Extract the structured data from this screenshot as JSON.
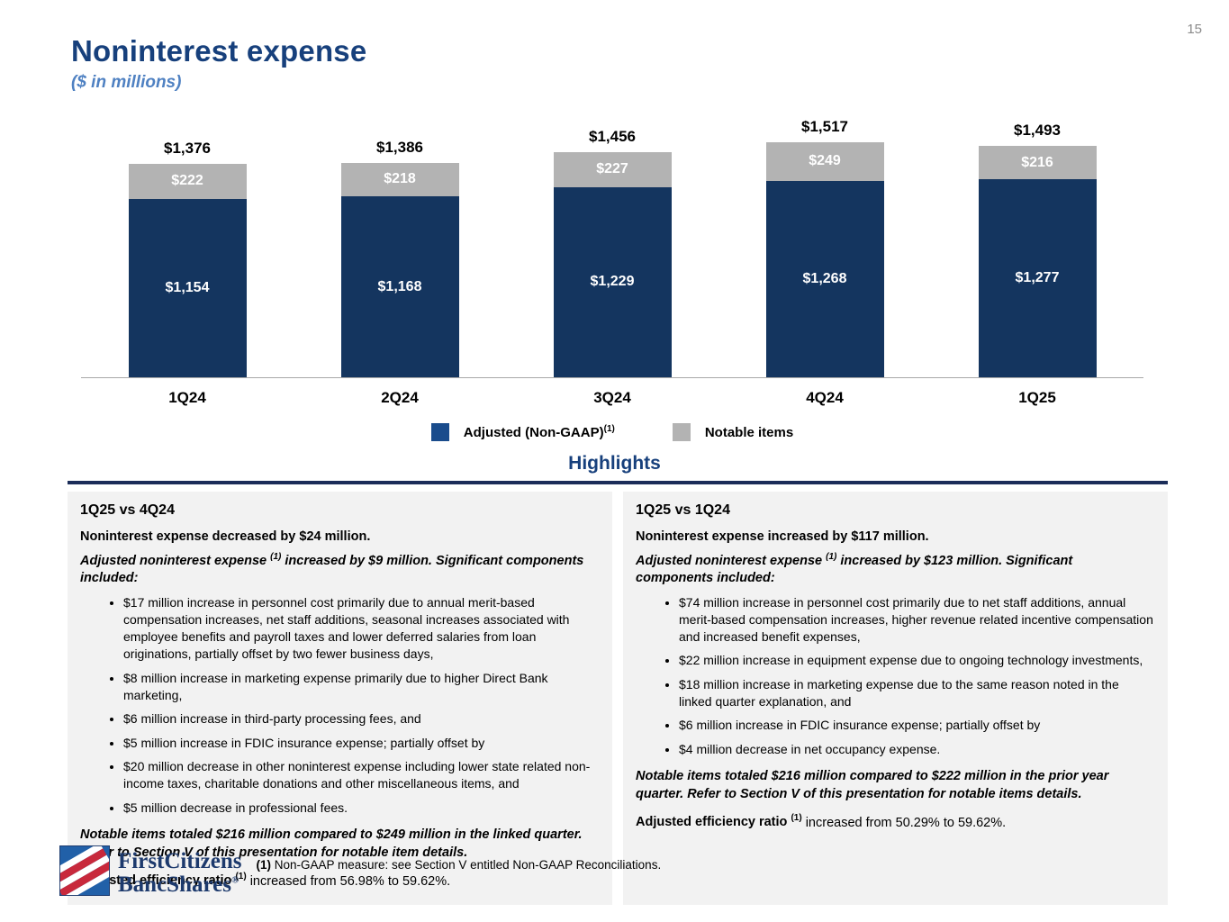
{
  "page": {
    "number": "15"
  },
  "header": {
    "title": "Noninterest expense",
    "subtitle": "($ in millions)"
  },
  "colors": {
    "accent_navy": "#17407c",
    "rule_navy": "#1b2d59",
    "bar_navy": "#14355f",
    "notable_gray": "#b3b3b3"
  },
  "chart_data": {
    "type": "bar",
    "stacked": true,
    "title": "Noninterest expense ($ in millions)",
    "categories": [
      "1Q24",
      "2Q24",
      "3Q24",
      "4Q24",
      "1Q25"
    ],
    "series": [
      {
        "name": "Adjusted (Non-GAAP)",
        "color": "#14355f",
        "values": [
          1154,
          1168,
          1229,
          1268,
          1277
        ],
        "labels": [
          "$1,154",
          "$1,168",
          "$1,229",
          "$1,268",
          "$1,277"
        ]
      },
      {
        "name": "Notable items",
        "color": "#b3b3b3",
        "values": [
          222,
          218,
          227,
          249,
          216
        ],
        "labels": [
          "$222",
          "$218",
          "$227",
          "$249",
          "$216"
        ]
      }
    ],
    "totals": [
      1376,
      1386,
      1456,
      1517,
      1493
    ],
    "total_labels": [
      "$1,376",
      "$1,386",
      "$1,456",
      "$1,517",
      "$1,493"
    ],
    "legend": [
      {
        "label": "Adjusted (Non-GAAP)",
        "sup": "(1)",
        "color": "#1a4c8c",
        "icon": "adjusted-legend-swatch"
      },
      {
        "label": "Notable items",
        "color": "#b3b3b3",
        "icon": "notable-legend-swatch"
      }
    ],
    "xlabel": "",
    "ylabel": "",
    "ylim": [
      0,
      1600
    ],
    "grid": false,
    "legend_position": "bottom"
  },
  "highlights": {
    "title": "Highlights",
    "left": {
      "header": "1Q25 vs 4Q24",
      "lead": "Noninterest expense decreased by $24 million.",
      "intro_prefix": "Adjusted noninterest expense ",
      "sup": "(1)",
      "intro_suffix": " increased by $9 million. Significant components included:",
      "bullets": [
        "$17 million increase in personnel cost primarily due to annual merit-based compensation increases, net staff additions, seasonal increases associated with employee benefits and payroll taxes and lower deferred salaries from loan originations, partially offset by two fewer business days,",
        "$8 million increase in marketing expense primarily due to higher Direct Bank marketing,",
        "$6 million increase in third-party processing fees, and",
        "$5 million increase in FDIC insurance expense; partially offset by",
        "$20 million decrease in other noninterest expense including lower state related non-income taxes, charitable donations and other miscellaneous items, and",
        "$5 million decrease in professional fees."
      ],
      "notable": "Notable items totaled $216 million compared to $249 million in the linked quarter. Refer to Section V of this presentation for notable item details.",
      "ratio_bold": "Adjusted efficiency ratio ",
      "ratio_rest": " increased from 56.98% to 59.62%."
    },
    "right": {
      "header": "1Q25 vs 1Q24",
      "lead": "Noninterest expense increased by $117 million.",
      "intro_prefix": "Adjusted noninterest expense ",
      "sup": "(1)",
      "intro_suffix": " increased by $123 million. Significant components included:",
      "bullets": [
        "$74 million increase in personnel cost primarily due to net staff additions, annual merit-based compensation increases, higher revenue related incentive compensation and increased benefit expenses,",
        "$22 million increase in equipment expense due to ongoing technology investments,",
        "$18 million increase in marketing expense due to the same reason noted in the linked quarter explanation, and",
        "$6 million increase in FDIC insurance expense; partially offset by",
        "$4 million decrease in net occupancy expense."
      ],
      "notable": "Notable items totaled $216 million compared to $222 million in the prior year quarter. Refer to Section V of this presentation for notable items details.",
      "ratio_bold": "Adjusted efficiency ratio ",
      "ratio_rest": " increased from 50.29% to 59.62%."
    }
  },
  "footer": {
    "logo_line1": "FirstCitizens",
    "logo_line2": "BancShares",
    "logo_reg": "®",
    "footnote_marker": "(1)",
    "footnote_text": " Non-GAAP measure: see Section V entitled Non-GAAP Reconciliations."
  }
}
